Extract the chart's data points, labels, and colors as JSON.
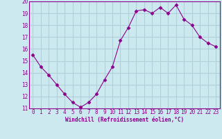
{
  "x": [
    0,
    1,
    2,
    3,
    4,
    5,
    6,
    7,
    8,
    9,
    10,
    11,
    12,
    13,
    14,
    15,
    16,
    17,
    18,
    19,
    20,
    21,
    22,
    23
  ],
  "y": [
    15.5,
    14.5,
    13.8,
    13.0,
    12.2,
    11.5,
    11.1,
    11.5,
    12.2,
    13.4,
    14.5,
    16.7,
    17.8,
    19.2,
    19.3,
    19.0,
    19.5,
    19.0,
    19.7,
    18.5,
    18.0,
    17.0,
    16.5,
    16.2
  ],
  "line_color": "#8b008b",
  "marker": "D",
  "marker_size": 2.5,
  "bg_color": "#cce9f0",
  "grid_color": "#b0d0dc",
  "xlabel": "Windchill (Refroidissement éolien,°C)",
  "xlabel_color": "#8b008b",
  "tick_color": "#8b008b",
  "spine_color": "#8b008b",
  "ylim": [
    11,
    20
  ],
  "xlim": [
    -0.5,
    23.5
  ],
  "yticks": [
    11,
    12,
    13,
    14,
    15,
    16,
    17,
    18,
    19,
    20
  ],
  "xticks": [
    0,
    1,
    2,
    3,
    4,
    5,
    6,
    7,
    8,
    9,
    10,
    11,
    12,
    13,
    14,
    15,
    16,
    17,
    18,
    19,
    20,
    21,
    22,
    23
  ],
  "tick_fontsize": 5.5,
  "xlabel_fontsize": 5.5
}
